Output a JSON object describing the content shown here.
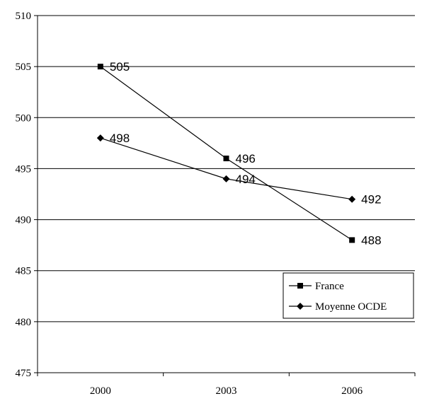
{
  "chart_data": {
    "type": "line",
    "title": "",
    "xlabel": "",
    "ylabel": "",
    "categories": [
      "2000",
      "2003",
      "2006"
    ],
    "ylim": [
      475,
      510
    ],
    "yticks": [
      475,
      480,
      485,
      490,
      495,
      500,
      505,
      510
    ],
    "grid": "horizontal",
    "legend_position": "bottom-right",
    "series": [
      {
        "name": "France",
        "marker": "square",
        "values": [
          505,
          496,
          488
        ],
        "labels": [
          "505",
          "496",
          "488"
        ],
        "color": "#000000"
      },
      {
        "name": "Moyenne OCDE",
        "marker": "diamond",
        "values": [
          498,
          494,
          492
        ],
        "labels": [
          "498",
          "494",
          "492"
        ],
        "color": "#000000"
      }
    ]
  }
}
